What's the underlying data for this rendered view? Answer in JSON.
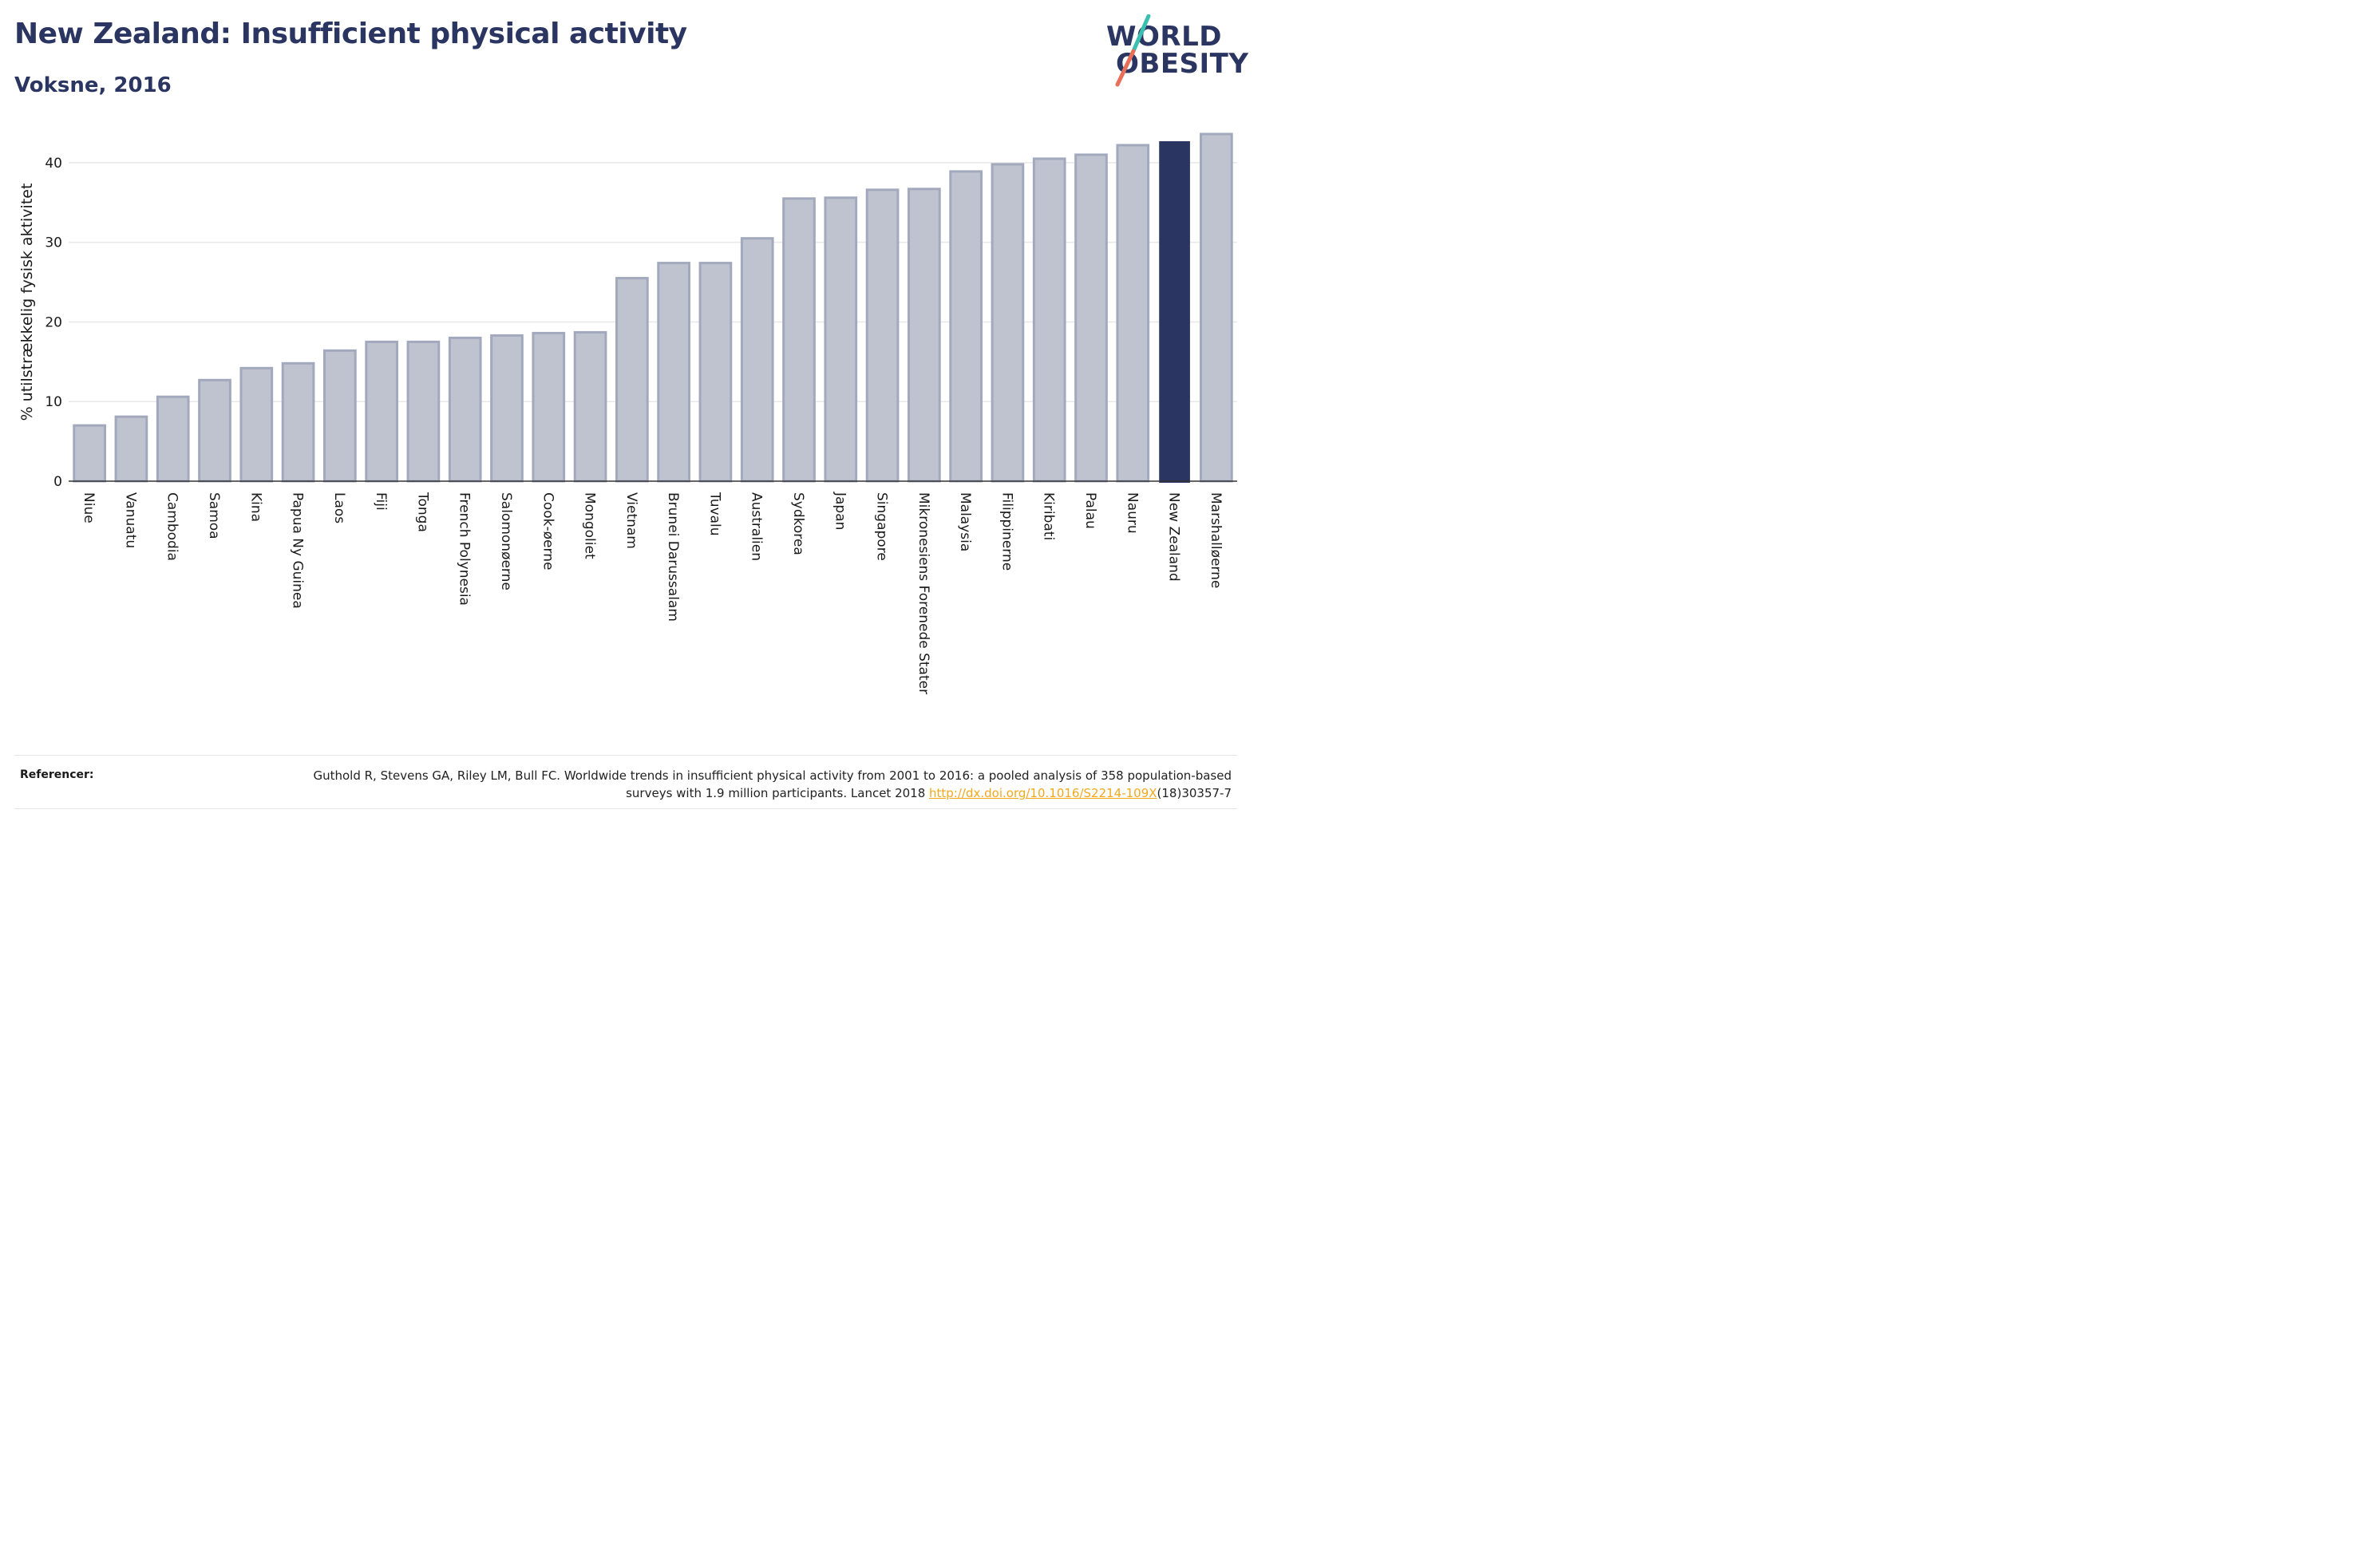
{
  "header": {
    "title": "New Zealand: Insufficient physical activity",
    "subtitle": "Voksne, 2016"
  },
  "logo": {
    "line1": "WORLD",
    "line2": "OBESITY",
    "colors": {
      "text": "#2b3561",
      "slash_top": "#3bbfb0",
      "slash_bottom": "#e8705a"
    }
  },
  "chart_data": {
    "type": "bar",
    "title": "New Zealand: Insufficient physical activity",
    "subtitle": "Voksne, 2016",
    "xlabel": "",
    "ylabel": "% utilstrækkelig fysisk aktivitet",
    "ylim": [
      0,
      45
    ],
    "yticks": [
      0,
      10,
      20,
      30,
      40
    ],
    "grid": true,
    "highlight": "New Zealand",
    "colors": {
      "bar": "#bfc3cf",
      "bar_border": "#a3a9bd",
      "highlight": "#2b3561",
      "grid": "#e8e8e8"
    },
    "categories": [
      "Niue",
      "Vanuatu",
      "Cambodia",
      "Samoa",
      "Kina",
      "Papua Ny Guinea",
      "Laos",
      "Fiji",
      "Tonga",
      "French Polynesia",
      "Salomonøerne",
      "Cook-øerne",
      "Mongoliet",
      "Vietnam",
      "Brunei Darussalam",
      "Tuvalu",
      "Australien",
      "Sydkorea",
      "Japan",
      "Singapore",
      "Mikronesiens Forenede Stater",
      "Malaysia",
      "Filippinerne",
      "Kiribati",
      "Palau",
      "Nauru",
      "New Zealand",
      "Marshalløerne"
    ],
    "values": [
      7.0,
      8.1,
      10.6,
      12.7,
      14.2,
      14.8,
      16.4,
      17.5,
      17.5,
      18.0,
      18.3,
      18.6,
      18.7,
      25.5,
      27.4,
      27.4,
      30.5,
      35.5,
      35.6,
      36.6,
      36.7,
      38.9,
      39.8,
      40.5,
      41.0,
      42.2,
      42.7,
      43.6
    ]
  },
  "footer": {
    "label": "Referencer:",
    "text_before_link": "Guthold R, Stevens GA, Riley LM, Bull FC. Worldwide trends in insufficient physical activity from 2001 to 2016: a pooled analysis of 358 population-based surveys with 1.9 million participants. Lancet 2018 ",
    "link": "http://dx.doi.org/10.1016/S2214-109X",
    "text_after_link": "(18)30357-7"
  }
}
